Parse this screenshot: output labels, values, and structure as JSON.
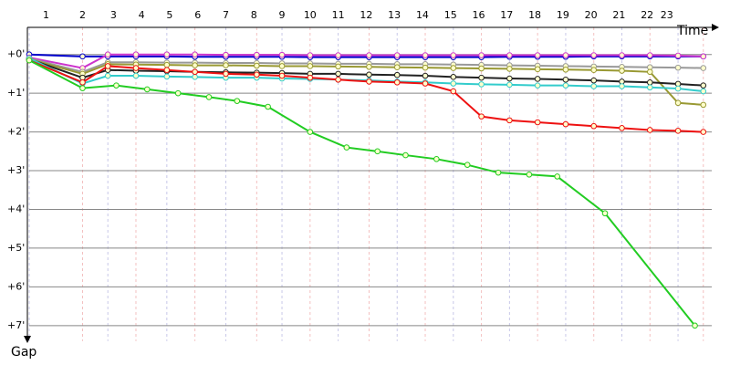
{
  "chart_data": {
    "type": "line",
    "x_label": "Time",
    "y_label": "Gap",
    "xlim": [
      0,
      24.3
    ],
    "ylim": [
      -0.7,
      7.4
    ],
    "xticks": [
      {
        "value": 0.6,
        "label": "1"
      },
      {
        "value": 1.9,
        "label": "2"
      },
      {
        "value": 3.0,
        "label": "3"
      },
      {
        "value": 4.0,
        "label": "4"
      },
      {
        "value": 5.0,
        "label": "5"
      },
      {
        "value": 6.0,
        "label": "6"
      },
      {
        "value": 7.0,
        "label": "7"
      },
      {
        "value": 8.0,
        "label": "8"
      },
      {
        "value": 9.0,
        "label": "9"
      },
      {
        "value": 10.0,
        "label": "10"
      },
      {
        "value": 11.0,
        "label": "11"
      },
      {
        "value": 12.0,
        "label": "12"
      },
      {
        "value": 13.0,
        "label": "13"
      },
      {
        "value": 14.0,
        "label": "14"
      },
      {
        "value": 15.0,
        "label": "15"
      },
      {
        "value": 16.0,
        "label": "16"
      },
      {
        "value": 17.0,
        "label": "17"
      },
      {
        "value": 18.0,
        "label": "18"
      },
      {
        "value": 19.0,
        "label": "19"
      },
      {
        "value": 20.0,
        "label": "20"
      },
      {
        "value": 21.0,
        "label": "21"
      },
      {
        "value": 22.0,
        "label": "22"
      },
      {
        "value": 22.7,
        "label": "23"
      }
    ],
    "yticks": [
      {
        "value": 0,
        "label": "+0'"
      },
      {
        "value": 1,
        "label": "+1'"
      },
      {
        "value": 2,
        "label": "+2'"
      },
      {
        "value": 3,
        "label": "+3'"
      },
      {
        "value": 4,
        "label": "+4'"
      },
      {
        "value": 5,
        "label": "+5'"
      },
      {
        "value": 6,
        "label": "+6'"
      },
      {
        "value": 7,
        "label": "+7'"
      }
    ],
    "grid": true,
    "x": [
      0,
      1.9,
      2.8,
      3.8,
      4.9,
      5.9,
      7.0,
      8.1,
      9.0,
      10.0,
      11.0,
      12.1,
      13.1,
      14.1,
      15.1,
      16.1,
      17.1,
      18.1,
      19.1,
      20.1,
      21.1,
      22.1,
      23.1,
      24.0
    ],
    "series": [
      {
        "color": "#0000cc",
        "values": [
          0.0,
          0.05,
          0.05,
          0.05,
          0.05,
          0.06,
          0.06,
          0.06,
          0.06,
          0.07,
          0.07,
          0.07,
          0.07,
          0.07,
          0.07,
          0.07,
          0.06,
          0.06,
          0.06,
          0.05,
          0.05,
          0.05,
          0.05,
          0.05
        ]
      },
      {
        "color": "#cc33cc",
        "values": [
          0.08,
          0.35,
          0.0,
          0.0,
          0.0,
          0.0,
          0.01,
          0.01,
          0.01,
          0.02,
          0.02,
          0.02,
          0.02,
          0.02,
          0.02,
          0.02,
          0.02,
          0.02,
          0.02,
          0.02,
          0.02,
          0.02,
          0.03,
          0.05
        ]
      },
      {
        "color": "#999999",
        "values": [
          0.1,
          0.45,
          0.2,
          0.2,
          0.21,
          0.21,
          0.22,
          0.22,
          0.23,
          0.23,
          0.24,
          0.24,
          0.25,
          0.25,
          0.26,
          0.27,
          0.28,
          0.29,
          0.3,
          0.31,
          0.32,
          0.33,
          0.34,
          0.35
        ]
      },
      {
        "color": "#999933",
        "values": [
          0.12,
          0.5,
          0.25,
          0.26,
          0.27,
          0.28,
          0.28,
          0.29,
          0.3,
          0.3,
          0.31,
          0.32,
          0.33,
          0.34,
          0.35,
          0.36,
          0.37,
          0.38,
          0.39,
          0.4,
          0.42,
          0.45,
          1.25,
          1.3
        ]
      },
      {
        "color": "#222222",
        "values": [
          0.12,
          0.6,
          0.4,
          0.42,
          0.43,
          0.45,
          0.46,
          0.47,
          0.48,
          0.5,
          0.5,
          0.52,
          0.53,
          0.55,
          0.58,
          0.6,
          0.62,
          0.63,
          0.65,
          0.67,
          0.7,
          0.72,
          0.76,
          0.8
        ]
      },
      {
        "color": "#33cccc",
        "values": [
          0.1,
          0.75,
          0.55,
          0.55,
          0.57,
          0.58,
          0.6,
          0.6,
          0.62,
          0.63,
          0.65,
          0.67,
          0.7,
          0.72,
          0.75,
          0.77,
          0.78,
          0.8,
          0.8,
          0.82,
          0.82,
          0.85,
          0.88,
          0.95
        ]
      },
      {
        "color": "#ee1111",
        "values": [
          0.15,
          0.72,
          0.3,
          0.35,
          0.4,
          0.45,
          0.5,
          0.52,
          0.55,
          0.6,
          0.65,
          0.7,
          0.72,
          0.75,
          0.95,
          1.6,
          1.7,
          1.75,
          1.8,
          1.85,
          1.9,
          1.95,
          1.97,
          2.0
        ]
      },
      {
        "color": "#22cc22",
        "x": [
          0,
          1.9,
          3.1,
          4.2,
          5.3,
          6.4,
          7.4,
          8.5,
          10.0,
          11.3,
          12.4,
          13.4,
          14.5,
          15.6,
          16.7,
          17.8,
          18.8,
          20.5,
          23.7
        ],
        "values": [
          0.15,
          0.87,
          0.8,
          0.9,
          1.0,
          1.1,
          1.2,
          1.35,
          2.0,
          2.4,
          2.5,
          2.6,
          2.7,
          2.85,
          3.05,
          3.1,
          3.15,
          4.1,
          7.0
        ]
      }
    ]
  }
}
